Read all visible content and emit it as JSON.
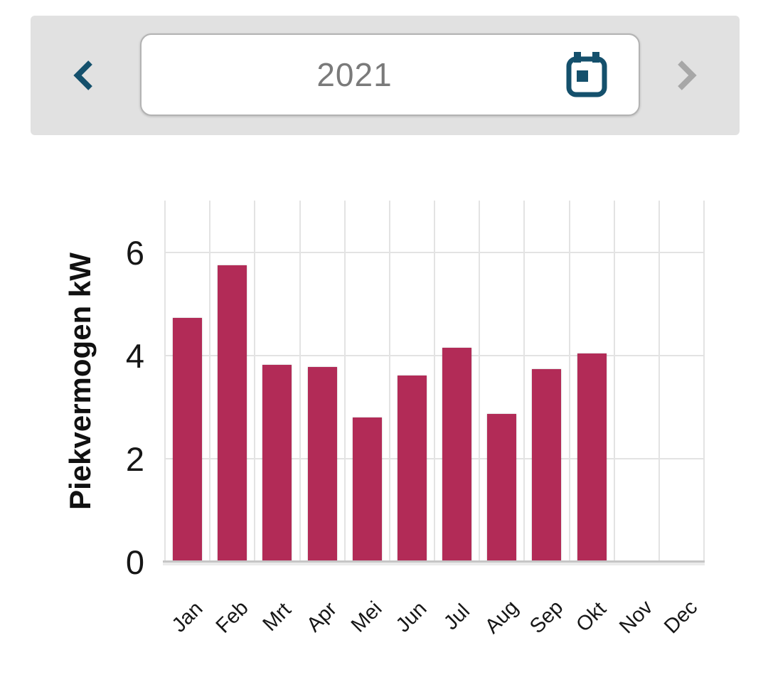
{
  "header": {
    "year_value": "2021",
    "prev_icon": "chevron-left",
    "next_icon": "chevron-right",
    "calendar_icon": "calendar",
    "colors": {
      "accent_teal": "#14506C",
      "disabled_chevron": "#A7A7A7",
      "strip_background": "#E1E1E1",
      "year_text": "#7A7A7A"
    }
  },
  "chart_data": {
    "type": "bar",
    "categories": [
      "Jan",
      "Feb",
      "Mrt",
      "Apr",
      "Mei",
      "Jun",
      "Jul",
      "Aug",
      "Sep",
      "Okt",
      "Nov",
      "Dec"
    ],
    "values": [
      4.73,
      5.75,
      3.82,
      3.78,
      2.8,
      3.61,
      4.15,
      2.87,
      3.74,
      4.04,
      0,
      0
    ],
    "title": "",
    "xlabel": "",
    "ylabel": "Piekvermogen kW",
    "ylim": [
      0,
      7
    ],
    "yticks": [
      0,
      2,
      4,
      6
    ],
    "bar_color": "#B22B57",
    "grid": true,
    "x_label_rotation": -45,
    "legend": "none"
  }
}
